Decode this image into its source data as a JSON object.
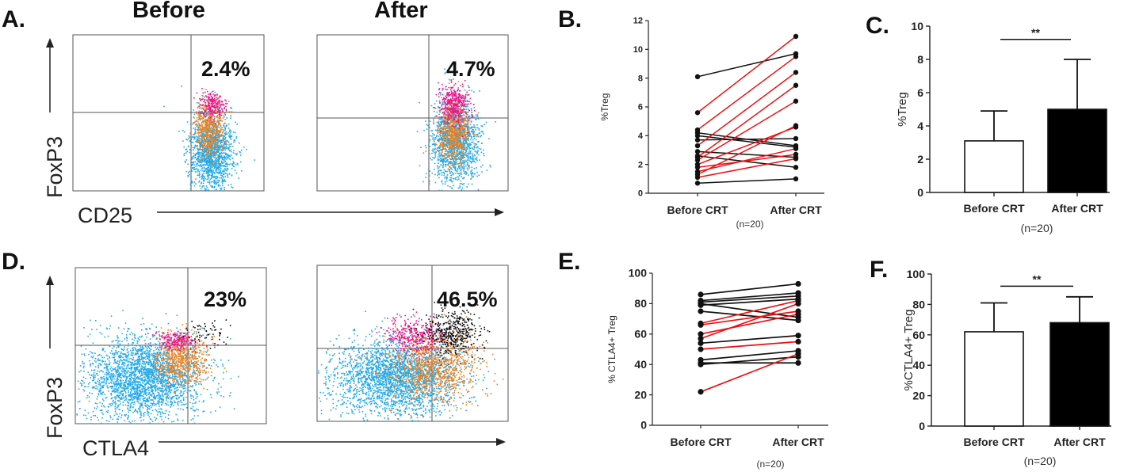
{
  "colors": {
    "pink": "#e8158c",
    "orange": "#f57f17",
    "blue": "#22a9e8",
    "black": "#111111",
    "red": "#ee1111"
  },
  "panel_labels": {
    "A": "A.",
    "B": "B.",
    "C": "C.",
    "D": "D.",
    "E": "E.",
    "F": "F."
  },
  "flow": {
    "before_header": "Before",
    "after_header": "After",
    "top": {
      "y_axis": "FoxP3",
      "x_axis": "CD25",
      "before_pct": "2.4%",
      "after_pct": "4.7%"
    },
    "bottom": {
      "y_axis": "FoxP3",
      "x_axis": "CTLA4",
      "before_pct": "23%",
      "after_pct": "46.5%"
    }
  },
  "chart_data": [
    {
      "panel": "B",
      "type": "line",
      "categories": [
        "Before CRT",
        "After CRT"
      ],
      "ylabel": "%Treg",
      "ylim": [
        0,
        12
      ],
      "yticks": [
        0,
        2,
        4,
        6,
        8,
        10,
        12
      ],
      "note": "(n=20)",
      "pairs": [
        {
          "before": 8.1,
          "after": 9.7,
          "color": "black"
        },
        {
          "before": 5.6,
          "after": 10.9,
          "color": "red"
        },
        {
          "before": 4.4,
          "after": 9.5,
          "color": "red"
        },
        {
          "before": 4.2,
          "after": 3.3,
          "color": "black"
        },
        {
          "before": 4.0,
          "after": 3.2,
          "color": "black"
        },
        {
          "before": 3.7,
          "after": 3.8,
          "color": "black"
        },
        {
          "before": 3.3,
          "after": 8.4,
          "color": "red"
        },
        {
          "before": 2.9,
          "after": 2.5,
          "color": "black"
        },
        {
          "before": 2.6,
          "after": 1.8,
          "color": "black"
        },
        {
          "before": 2.5,
          "after": 7.5,
          "color": "red"
        },
        {
          "before": 2.3,
          "after": 6.4,
          "color": "red"
        },
        {
          "before": 2.0,
          "after": 4.6,
          "color": "red"
        },
        {
          "before": 1.8,
          "after": 2.7,
          "color": "red"
        },
        {
          "before": 1.5,
          "after": 3.1,
          "color": "red"
        },
        {
          "before": 1.3,
          "after": 4.7,
          "color": "red"
        },
        {
          "before": 1.1,
          "after": 2.4,
          "color": "red"
        },
        {
          "before": 0.7,
          "after": 1.0,
          "color": "black"
        }
      ]
    },
    {
      "panel": "C",
      "type": "bar",
      "categories": [
        "Before CRT",
        "After CRT"
      ],
      "values": [
        3.1,
        5.0
      ],
      "errors": [
        1.8,
        3.0
      ],
      "fills": [
        "white",
        "black"
      ],
      "ylabel": "%Treg",
      "ylim": [
        0,
        10
      ],
      "yticks": [
        0,
        2,
        4,
        6,
        8,
        10
      ],
      "significance": "**",
      "note": "(n=20)"
    },
    {
      "panel": "E",
      "type": "line",
      "categories": [
        "Before CRT",
        "After CRT"
      ],
      "ylabel": "% CTLA4+ Treg",
      "ylim": [
        0,
        100
      ],
      "yticks": [
        0,
        20,
        40,
        60,
        80,
        100
      ],
      "note": "(n=20)",
      "pairs": [
        {
          "before": 86,
          "after": 93,
          "color": "black"
        },
        {
          "before": 82,
          "after": 87,
          "color": "black"
        },
        {
          "before": 81,
          "after": 85,
          "color": "black"
        },
        {
          "before": 80,
          "after": 71,
          "color": "black"
        },
        {
          "before": 79,
          "after": 83,
          "color": "black"
        },
        {
          "before": 75,
          "after": 69,
          "color": "black"
        },
        {
          "before": 67,
          "after": 82,
          "color": "red"
        },
        {
          "before": 66,
          "after": 75,
          "color": "red"
        },
        {
          "before": 60,
          "after": 73,
          "color": "red"
        },
        {
          "before": 57,
          "after": 80,
          "color": "red"
        },
        {
          "before": 54,
          "after": 59,
          "color": "black"
        },
        {
          "before": 50,
          "after": 55,
          "color": "red"
        },
        {
          "before": 43,
          "after": 49,
          "color": "black"
        },
        {
          "before": 41,
          "after": 41,
          "color": "black"
        },
        {
          "before": 40,
          "after": 45,
          "color": "black"
        },
        {
          "before": 22,
          "after": 47,
          "color": "red"
        }
      ]
    },
    {
      "panel": "F",
      "type": "bar",
      "categories": [
        "Before CRT",
        "After CRT"
      ],
      "values": [
        62,
        68
      ],
      "errors": [
        19,
        17
      ],
      "fills": [
        "white",
        "black"
      ],
      "ylabel": "%CTLA4+ Treg",
      "ylim": [
        0,
        100
      ],
      "yticks": [
        0,
        20,
        40,
        60,
        80,
        100
      ],
      "significance": "**",
      "note": "(n=20)"
    }
  ]
}
